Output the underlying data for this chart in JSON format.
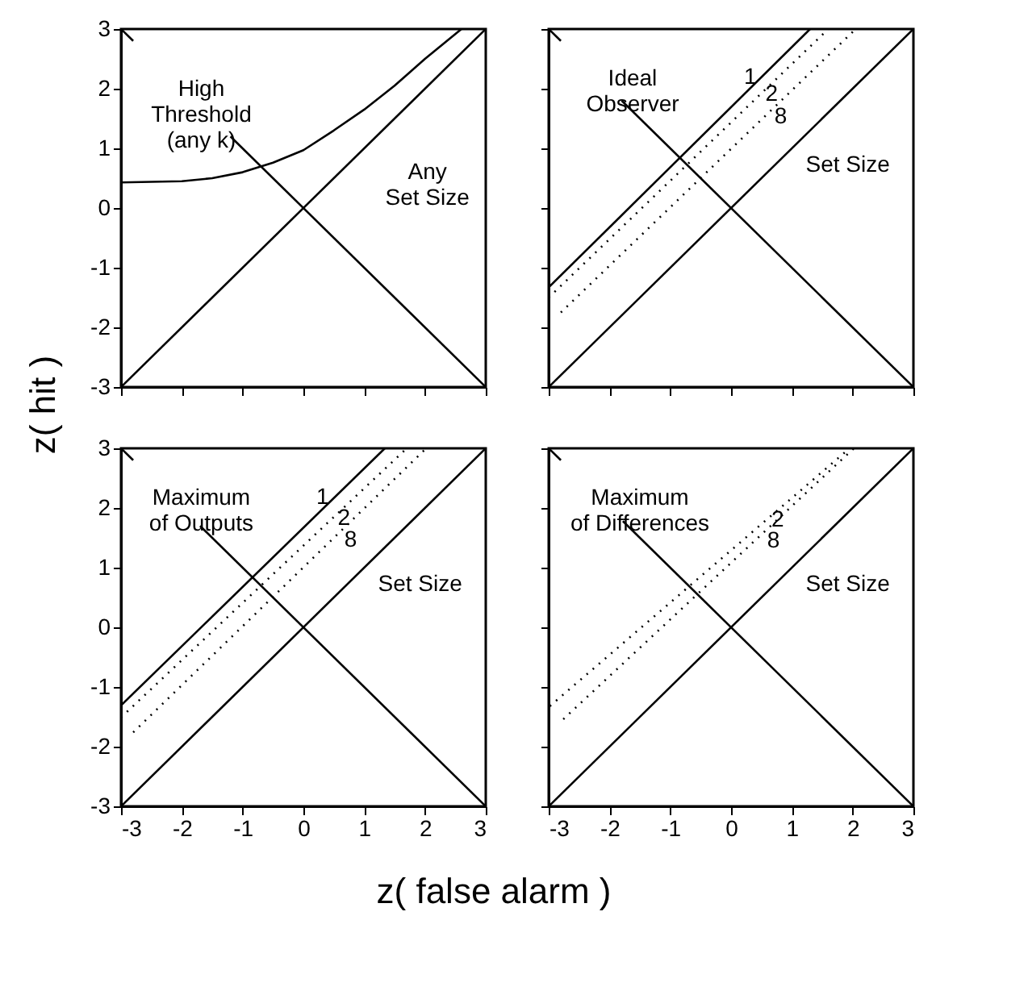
{
  "chart_data": [
    {
      "type": "line",
      "ylabel": "z( hit )",
      "xlim": [
        -3,
        3
      ],
      "ylim": [
        -3,
        3
      ],
      "xticks": [
        -3,
        -2,
        -1,
        0,
        1,
        2,
        3
      ],
      "yticks": [
        -3,
        -2,
        -1,
        0,
        1,
        2,
        3
      ],
      "tick_labels": "y",
      "grid": false,
      "series": [
        {
          "color": "#000000",
          "line_style": "solid",
          "x": [
            -3,
            3
          ],
          "values": [
            -3,
            3
          ]
        },
        {
          "color": "#000000",
          "line_style": "solid",
          "x": [
            -3,
            -2.8
          ],
          "values": [
            3,
            2.8
          ]
        },
        {
          "color": "#000000",
          "line_style": "solid",
          "x": [
            -1.2,
            3
          ],
          "values": [
            1.2,
            -3
          ]
        },
        {
          "color": "#000000",
          "line_style": "solid",
          "x": [
            -3,
            -2,
            -1.5,
            -1,
            -0.5,
            0,
            0.5,
            1,
            1.5,
            2,
            2.6
          ],
          "values": [
            0.43,
            0.45,
            0.5,
            0.6,
            0.76,
            0.97,
            1.3,
            1.65,
            2.05,
            2.5,
            3
          ]
        }
      ],
      "annotations": [
        "High\nThreshold\n(any k)",
        "Any\nSet Size"
      ]
    },
    {
      "type": "line",
      "xlim": [
        -3,
        3
      ],
      "ylim": [
        -3,
        3
      ],
      "xticks": [
        -3,
        -2,
        -1,
        0,
        1,
        2,
        3
      ],
      "yticks": [
        -3,
        -2,
        -1,
        0,
        1,
        2,
        3
      ],
      "tick_labels": false,
      "grid": false,
      "series": [
        {
          "color": "#000000",
          "line_style": "solid",
          "x": [
            -3,
            3
          ],
          "values": [
            -3,
            3
          ]
        },
        {
          "color": "#000000",
          "line_style": "solid",
          "x": [
            -3,
            -2.8
          ],
          "values": [
            3,
            2.8
          ]
        },
        {
          "color": "#000000",
          "line_style": "solid",
          "x": [
            -1.8,
            3
          ],
          "values": [
            1.8,
            -3
          ]
        },
        {
          "color": "#000000",
          "line_style": "solid",
          "x": [
            -3,
            1.3
          ],
          "values": [
            -1.33,
            3
          ]
        },
        {
          "color": "#000000",
          "line_style": "dotted",
          "x": [
            -3,
            1.6
          ],
          "values": [
            -1.5,
            3
          ]
        },
        {
          "color": "#000000",
          "line_style": "dotted",
          "x": [
            -2.8,
            2.05
          ],
          "values": [
            -1.75,
            3
          ]
        }
      ],
      "annotations": [
        "Ideal\nObserver",
        "Set Size",
        {
          "text": "1",
          "x": 0.5,
          "y": 2.19
        },
        {
          "text": "2",
          "x": 0.48,
          "y": 1.9
        },
        {
          "text": "8",
          "x": 0.55,
          "y": 1.53
        }
      ]
    },
    {
      "type": "line",
      "xlabel": "z( false alarm )",
      "xlim": [
        -3,
        3
      ],
      "ylim": [
        -3,
        3
      ],
      "xticks": [
        -3,
        -2,
        -1,
        0,
        1,
        2,
        3
      ],
      "yticks": [
        -3,
        -2,
        -1,
        0,
        1,
        2,
        3
      ],
      "grid": false,
      "series": [
        {
          "color": "#000000",
          "line_style": "solid",
          "x": [
            -3,
            3
          ],
          "values": [
            -3,
            3
          ]
        },
        {
          "color": "#000000",
          "line_style": "solid",
          "x": [
            -3,
            -2.8
          ],
          "values": [
            3,
            2.8
          ]
        },
        {
          "color": "#000000",
          "line_style": "solid",
          "x": [
            -1.7,
            3
          ],
          "values": [
            1.7,
            -3
          ]
        },
        {
          "color": "#000000",
          "line_style": "solid",
          "x": [
            -3,
            1.34
          ],
          "values": [
            -1.31,
            3
          ]
        },
        {
          "color": "#000000",
          "line_style": "dotted",
          "x": [
            -3,
            1.7
          ],
          "values": [
            -1.51,
            3
          ]
        },
        {
          "color": "#000000",
          "line_style": "dotted",
          "x": [
            -2.8,
            2.02
          ],
          "values": [
            -1.76,
            3
          ]
        }
      ],
      "annotations": [
        "Maximum\nof Outputs",
        "Set Size",
        {
          "text": "1",
          "x": 0.5,
          "y": 2.17
        },
        {
          "text": "2",
          "x": 0.48,
          "y": 1.83
        },
        {
          "text": "8",
          "x": 0.46,
          "y": 1.46
        }
      ]
    },
    {
      "type": "line",
      "xlim": [
        -3,
        3
      ],
      "ylim": [
        -3,
        3
      ],
      "xticks": [
        -3,
        -2,
        -1,
        0,
        1,
        2,
        3
      ],
      "yticks": [
        -3,
        -2,
        -1,
        0,
        1,
        2,
        3
      ],
      "tick_labels": "x",
      "grid": false,
      "series": [
        {
          "color": "#000000",
          "line_style": "solid",
          "x": [
            -3,
            3
          ],
          "values": [
            -3,
            3
          ]
        },
        {
          "color": "#000000",
          "line_style": "solid",
          "x": [
            -3,
            -2.8
          ],
          "values": [
            3,
            2.8
          ]
        },
        {
          "color": "#000000",
          "line_style": "solid",
          "x": [
            -1.78,
            3
          ],
          "values": [
            1.78,
            -3
          ]
        },
        {
          "color": "#000000",
          "line_style": "dotted",
          "x": [
            -2.98,
            1.95
          ],
          "values": [
            -1.32,
            3
          ]
        },
        {
          "color": "#000000",
          "line_style": "dotted",
          "x": [
            -2.76,
            2.02
          ],
          "values": [
            -1.54,
            3
          ]
        }
      ],
      "annotations": [
        "Maximum\nof Differences",
        "Set Size",
        {
          "text": "2",
          "x": 0.58,
          "y": 1.8
        },
        {
          "text": "8",
          "x": 0.38,
          "y": 1.44
        }
      ]
    }
  ]
}
